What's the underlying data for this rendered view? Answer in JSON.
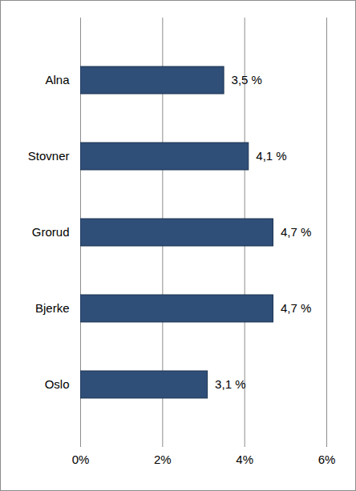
{
  "chart_data": {
    "type": "bar",
    "orientation": "horizontal",
    "categories": [
      "Alna",
      "Stovner",
      "Grorud",
      "Bjerke",
      "Oslo"
    ],
    "values": [
      3.5,
      4.1,
      4.7,
      4.7,
      3.1
    ],
    "value_labels": [
      "3,5 %",
      "4,1 %",
      "4,7 %",
      "4,7 %",
      "3,1 %"
    ],
    "data_labels": true,
    "color": "#2f4e78",
    "xlim": [
      0,
      6
    ],
    "xticks": [
      {
        "value": 0,
        "label": "0%"
      },
      {
        "value": 2,
        "label": "2%"
      },
      {
        "value": 4,
        "label": "4%"
      },
      {
        "value": 6,
        "label": "6%"
      }
    ],
    "grid": true
  }
}
